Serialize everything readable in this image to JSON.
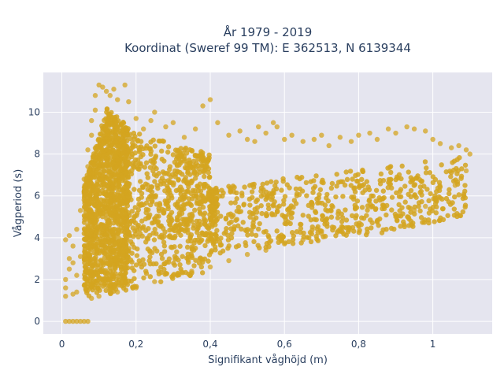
{
  "chart_data": {
    "type": "scatter",
    "title": [
      "År 1979 - 2019",
      "Koordinat (Sweref 99 TM): E 362513, N 6139344"
    ],
    "xlabel": "Signifikant våghöjd (m)",
    "ylabel": "Vågperiod (s)",
    "xlim": [
      -0.05,
      1.16
    ],
    "ylim": [
      -0.6,
      11.9
    ],
    "xticks": [
      0,
      0.2,
      0.4,
      0.6,
      0.8,
      1
    ],
    "xtick_labels": [
      "0",
      "0,2",
      "0,4",
      "0,6",
      "0,8",
      "1"
    ],
    "yticks": [
      0,
      2,
      4,
      6,
      8,
      10
    ],
    "ytick_labels": [
      "0",
      "2",
      "4",
      "6",
      "8",
      "10"
    ],
    "grid": true,
    "marker_color": "#d4a420",
    "background_color": "#e5e5ef",
    "series": [
      {
        "points": [
          [
            0.01,
            0
          ],
          [
            0.02,
            0
          ],
          [
            0.03,
            0
          ],
          [
            0.04,
            0
          ],
          [
            0.05,
            0
          ],
          [
            0.06,
            0
          ],
          [
            0.07,
            0
          ],
          [
            0.01,
            1.2
          ],
          [
            0.01,
            1.6
          ],
          [
            0.01,
            2.0
          ],
          [
            0.01,
            3.9
          ],
          [
            0.02,
            4.1
          ],
          [
            0.02,
            2.5
          ],
          [
            0.02,
            3.0
          ],
          [
            0.03,
            1.3
          ],
          [
            0.03,
            2.8
          ],
          [
            0.03,
            3.6
          ],
          [
            0.04,
            1.4
          ],
          [
            0.04,
            2.2
          ],
          [
            0.04,
            4.4
          ],
          [
            0.05,
            5.3
          ],
          [
            0.05,
            3.1
          ],
          [
            0.06,
            5.8
          ],
          [
            0.06,
            6.8
          ],
          [
            0.07,
            7.4
          ],
          [
            0.07,
            8.2
          ],
          [
            0.08,
            8.9
          ],
          [
            0.08,
            9.6
          ],
          [
            0.09,
            10.1
          ],
          [
            0.09,
            10.8
          ],
          [
            0.1,
            11.3
          ],
          [
            0.11,
            11.2
          ],
          [
            0.12,
            11.0
          ],
          [
            0.13,
            10.8
          ],
          [
            0.14,
            11.1
          ],
          [
            0.15,
            10.6
          ],
          [
            0.17,
            11.3
          ],
          [
            0.18,
            10.5
          ],
          [
            0.2,
            9.7
          ],
          [
            0.22,
            9.2
          ],
          [
            0.24,
            9.6
          ],
          [
            0.25,
            10.0
          ],
          [
            0.28,
            9.3
          ],
          [
            0.3,
            9.5
          ],
          [
            0.33,
            8.8
          ],
          [
            0.36,
            9.2
          ],
          [
            0.38,
            10.3
          ],
          [
            0.4,
            10.6
          ],
          [
            0.42,
            9.5
          ],
          [
            0.45,
            8.9
          ],
          [
            0.48,
            9.1
          ],
          [
            0.5,
            8.7
          ],
          [
            0.52,
            8.6
          ],
          [
            0.53,
            9.3
          ],
          [
            0.55,
            9.0
          ],
          [
            0.57,
            9.5
          ],
          [
            0.58,
            9.3
          ],
          [
            0.6,
            8.7
          ],
          [
            0.62,
            8.9
          ],
          [
            0.65,
            8.6
          ],
          [
            0.68,
            8.7
          ],
          [
            0.7,
            8.9
          ],
          [
            0.72,
            8.4
          ],
          [
            0.75,
            8.8
          ],
          [
            0.78,
            8.6
          ],
          [
            0.8,
            8.9
          ],
          [
            0.83,
            9.0
          ],
          [
            0.85,
            8.7
          ],
          [
            0.88,
            9.2
          ],
          [
            0.9,
            9.0
          ],
          [
            0.93,
            9.3
          ],
          [
            0.95,
            9.2
          ],
          [
            0.98,
            9.1
          ],
          [
            1.0,
            8.7
          ],
          [
            1.02,
            8.5
          ],
          [
            1.05,
            8.3
          ],
          [
            1.07,
            8.4
          ],
          [
            1.09,
            8.2
          ],
          [
            1.1,
            8.0
          ],
          [
            1.09,
            7.2
          ],
          [
            1.06,
            6.5
          ],
          [
            1.02,
            5.9
          ],
          [
            0.98,
            5.5
          ],
          [
            0.95,
            5.3
          ],
          [
            0.9,
            5.0
          ],
          [
            0.85,
            4.8
          ],
          [
            0.8,
            4.6
          ],
          [
            0.75,
            4.4
          ],
          [
            0.7,
            4.2
          ],
          [
            0.65,
            3.9
          ],
          [
            0.6,
            3.7
          ],
          [
            0.55,
            3.4
          ],
          [
            0.5,
            3.2
          ],
          [
            0.45,
            2.9
          ],
          [
            0.4,
            2.6
          ],
          [
            0.35,
            2.4
          ],
          [
            0.3,
            2.2
          ],
          [
            0.25,
            1.9
          ],
          [
            0.2,
            1.6
          ],
          [
            0.15,
            1.4
          ],
          [
            0.1,
            1.2
          ],
          [
            0.08,
            1.1
          ]
        ]
      }
    ]
  }
}
